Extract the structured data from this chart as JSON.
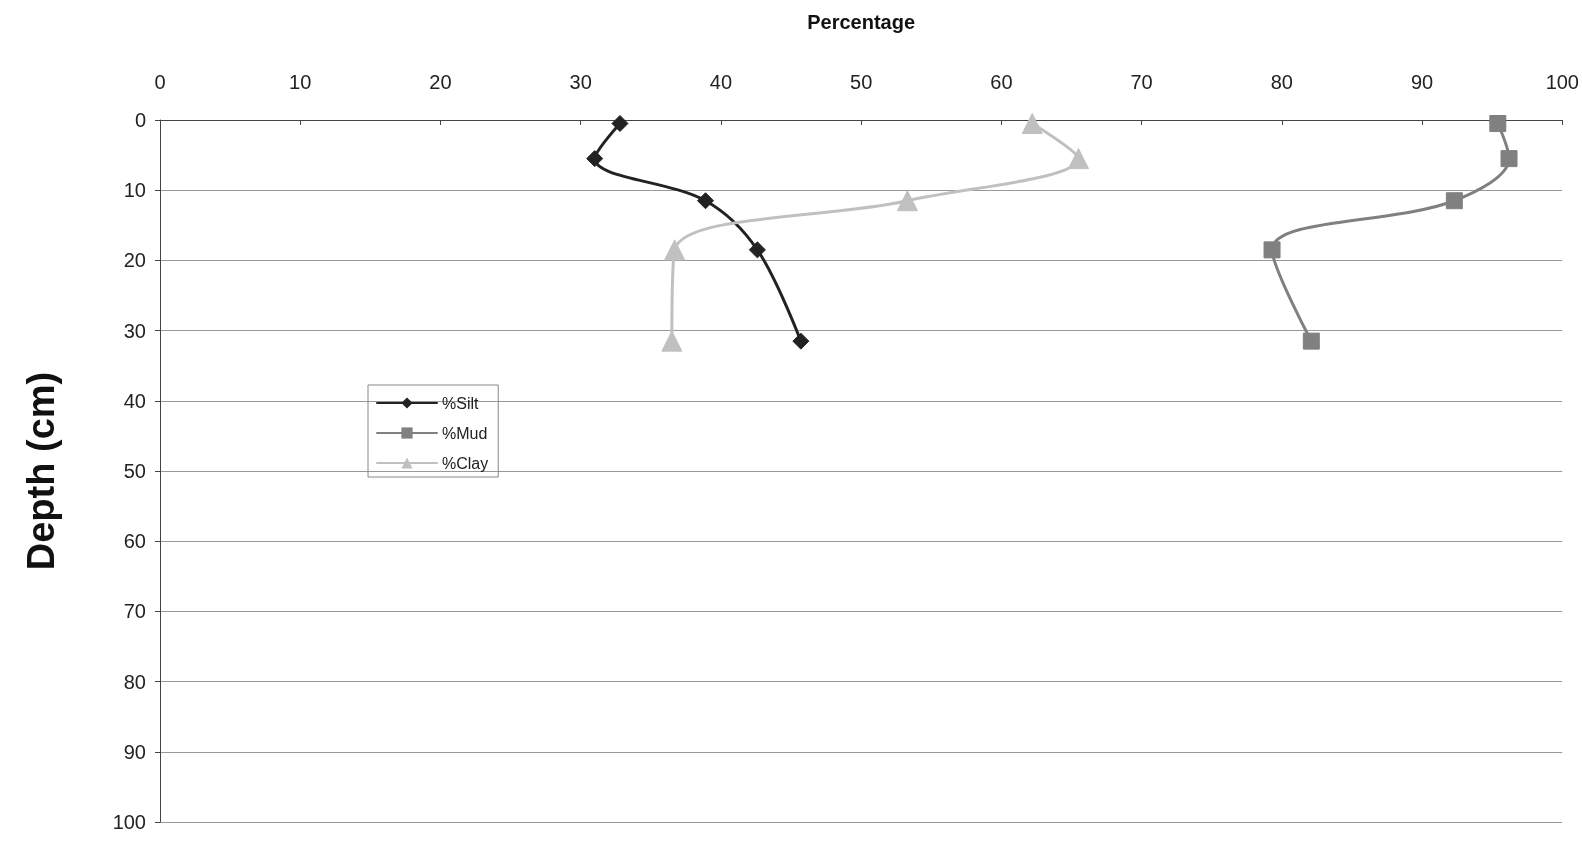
{
  "chart_data": {
    "type": "line",
    "xlabel": "Percentage",
    "ylabel": "Depth (cm)",
    "xlim": [
      0,
      100
    ],
    "xticks": [
      0,
      10,
      20,
      30,
      40,
      50,
      60,
      70,
      80,
      90,
      100
    ],
    "ylim": [
      100,
      0
    ],
    "yticks": [
      0,
      10,
      20,
      30,
      40,
      50,
      60,
      70,
      80,
      90,
      100
    ],
    "grid": "y",
    "legend": "left",
    "series": [
      {
        "name": "%Silt",
        "color": "#222222",
        "marker": "diamond",
        "x": [
          32.8,
          31.0,
          38.9,
          42.6,
          45.7
        ],
        "values": [
          0.5,
          5.5,
          11.5,
          18.5,
          31.5
        ]
      },
      {
        "name": "%Mud",
        "color": "#808080",
        "marker": "square",
        "x": [
          95.4,
          96.2,
          92.3,
          79.3,
          82.1
        ],
        "values": [
          0.5,
          5.5,
          11.5,
          18.5,
          31.5
        ]
      },
      {
        "name": "%Clay",
        "color": "#c0c0c0",
        "marker": "triangle",
        "x": [
          62.2,
          65.5,
          53.3,
          36.7,
          36.5
        ],
        "values": [
          0.5,
          5.5,
          11.5,
          18.5,
          31.5
        ]
      }
    ]
  }
}
